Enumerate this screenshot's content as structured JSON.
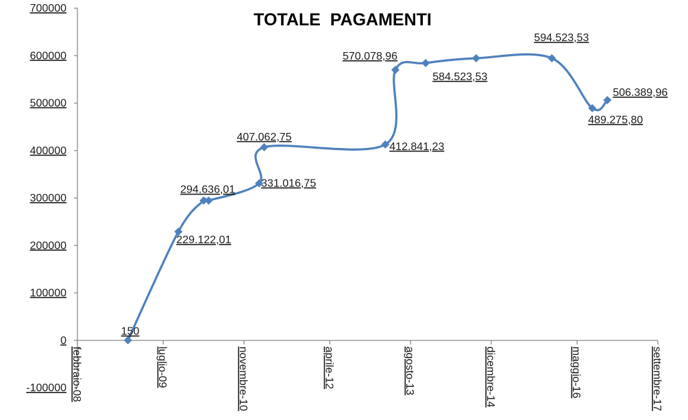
{
  "chart_data": {
    "type": "line",
    "title": "TOTALE  PAGAMENTI",
    "xlabel": "",
    "ylabel": "",
    "ylim": [
      -100000,
      700000
    ],
    "y_ticks": [
      -100000,
      0,
      100000,
      200000,
      300000,
      400000,
      500000,
      600000,
      700000
    ],
    "y_tick_labels": [
      "-100000",
      "0",
      "100000",
      "200000",
      "300000",
      "400000",
      "500000",
      "600000",
      "700000"
    ],
    "x_ticks": [
      "2008-02",
      "2009-07",
      "2010-11",
      "2012-04",
      "2013-08",
      "2014-12",
      "2016-05",
      "2017-09"
    ],
    "x_tick_labels": [
      "febbraio-08",
      "luglio-09",
      "novembre-10",
      "aprile-12",
      "agosto-13",
      "dicembre-14",
      "maggio-16",
      "settembre-17"
    ],
    "xlim": [
      "2008-02",
      "2017-09"
    ],
    "grid": false,
    "legend": "none",
    "line_color": "#4f81bd",
    "series": [
      {
        "x": [
          "2008-12",
          "2009-10",
          "2010-03",
          "2010-04",
          "2011-02",
          "2011-03",
          "2013-03",
          "2013-05",
          "2013-11",
          "2014-09",
          "2015-12",
          "2016-08",
          "2016-11"
        ],
        "values": [
          150,
          229122.01,
          294636.01,
          294636.01,
          331016.75,
          407062.75,
          412841.23,
          570078.96,
          584523.53,
          594523.53,
          594523.53,
          489275.8,
          506389.96
        ],
        "labels": [
          "150",
          "229.122,01",
          "294.636,01",
          "",
          "331.016,75",
          "407.062,75",
          "412.841,23",
          "570.078,96",
          "584.523,53",
          "",
          "594.523,53",
          "489.275,80",
          "506.389,96"
        ]
      }
    ]
  }
}
